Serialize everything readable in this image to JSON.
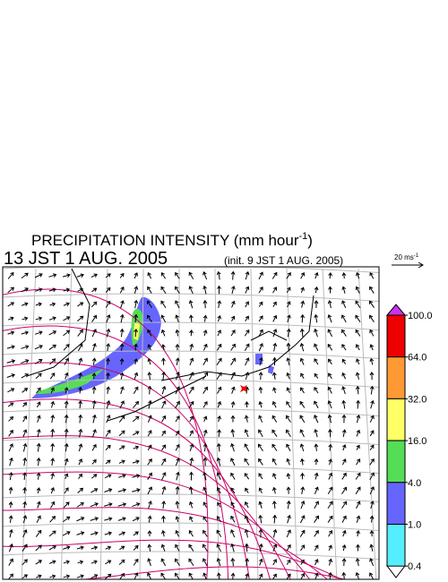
{
  "title": "PRECIPITATION INTENSITY (mm hour",
  "title_superscript": "-1",
  "title_close": ")",
  "valid_time": "13 JST 1 AUG. 2005",
  "init_time": "(init. 9 JST 1 AUG. 2005)",
  "vector_scale": {
    "label": "20 ms",
    "superscript": "-1"
  },
  "colorbar": {
    "over_color": "#cc33ee",
    "levels": [
      {
        "value": 100,
        "label": "100.0"
      },
      {
        "value": 64,
        "label": "64.0"
      },
      {
        "value": 32,
        "label": "32.0"
      },
      {
        "value": 16,
        "label": "16.0"
      },
      {
        "value": 4,
        "label": "4.0"
      },
      {
        "value": 1,
        "label": "1.0"
      },
      {
        "value": 0.4,
        "label": "0.4"
      }
    ],
    "colors": [
      "#ee0000",
      "#ff9933",
      "#ffff66",
      "#55dd55",
      "#6666ff",
      "#55eeff"
    ]
  }
}
